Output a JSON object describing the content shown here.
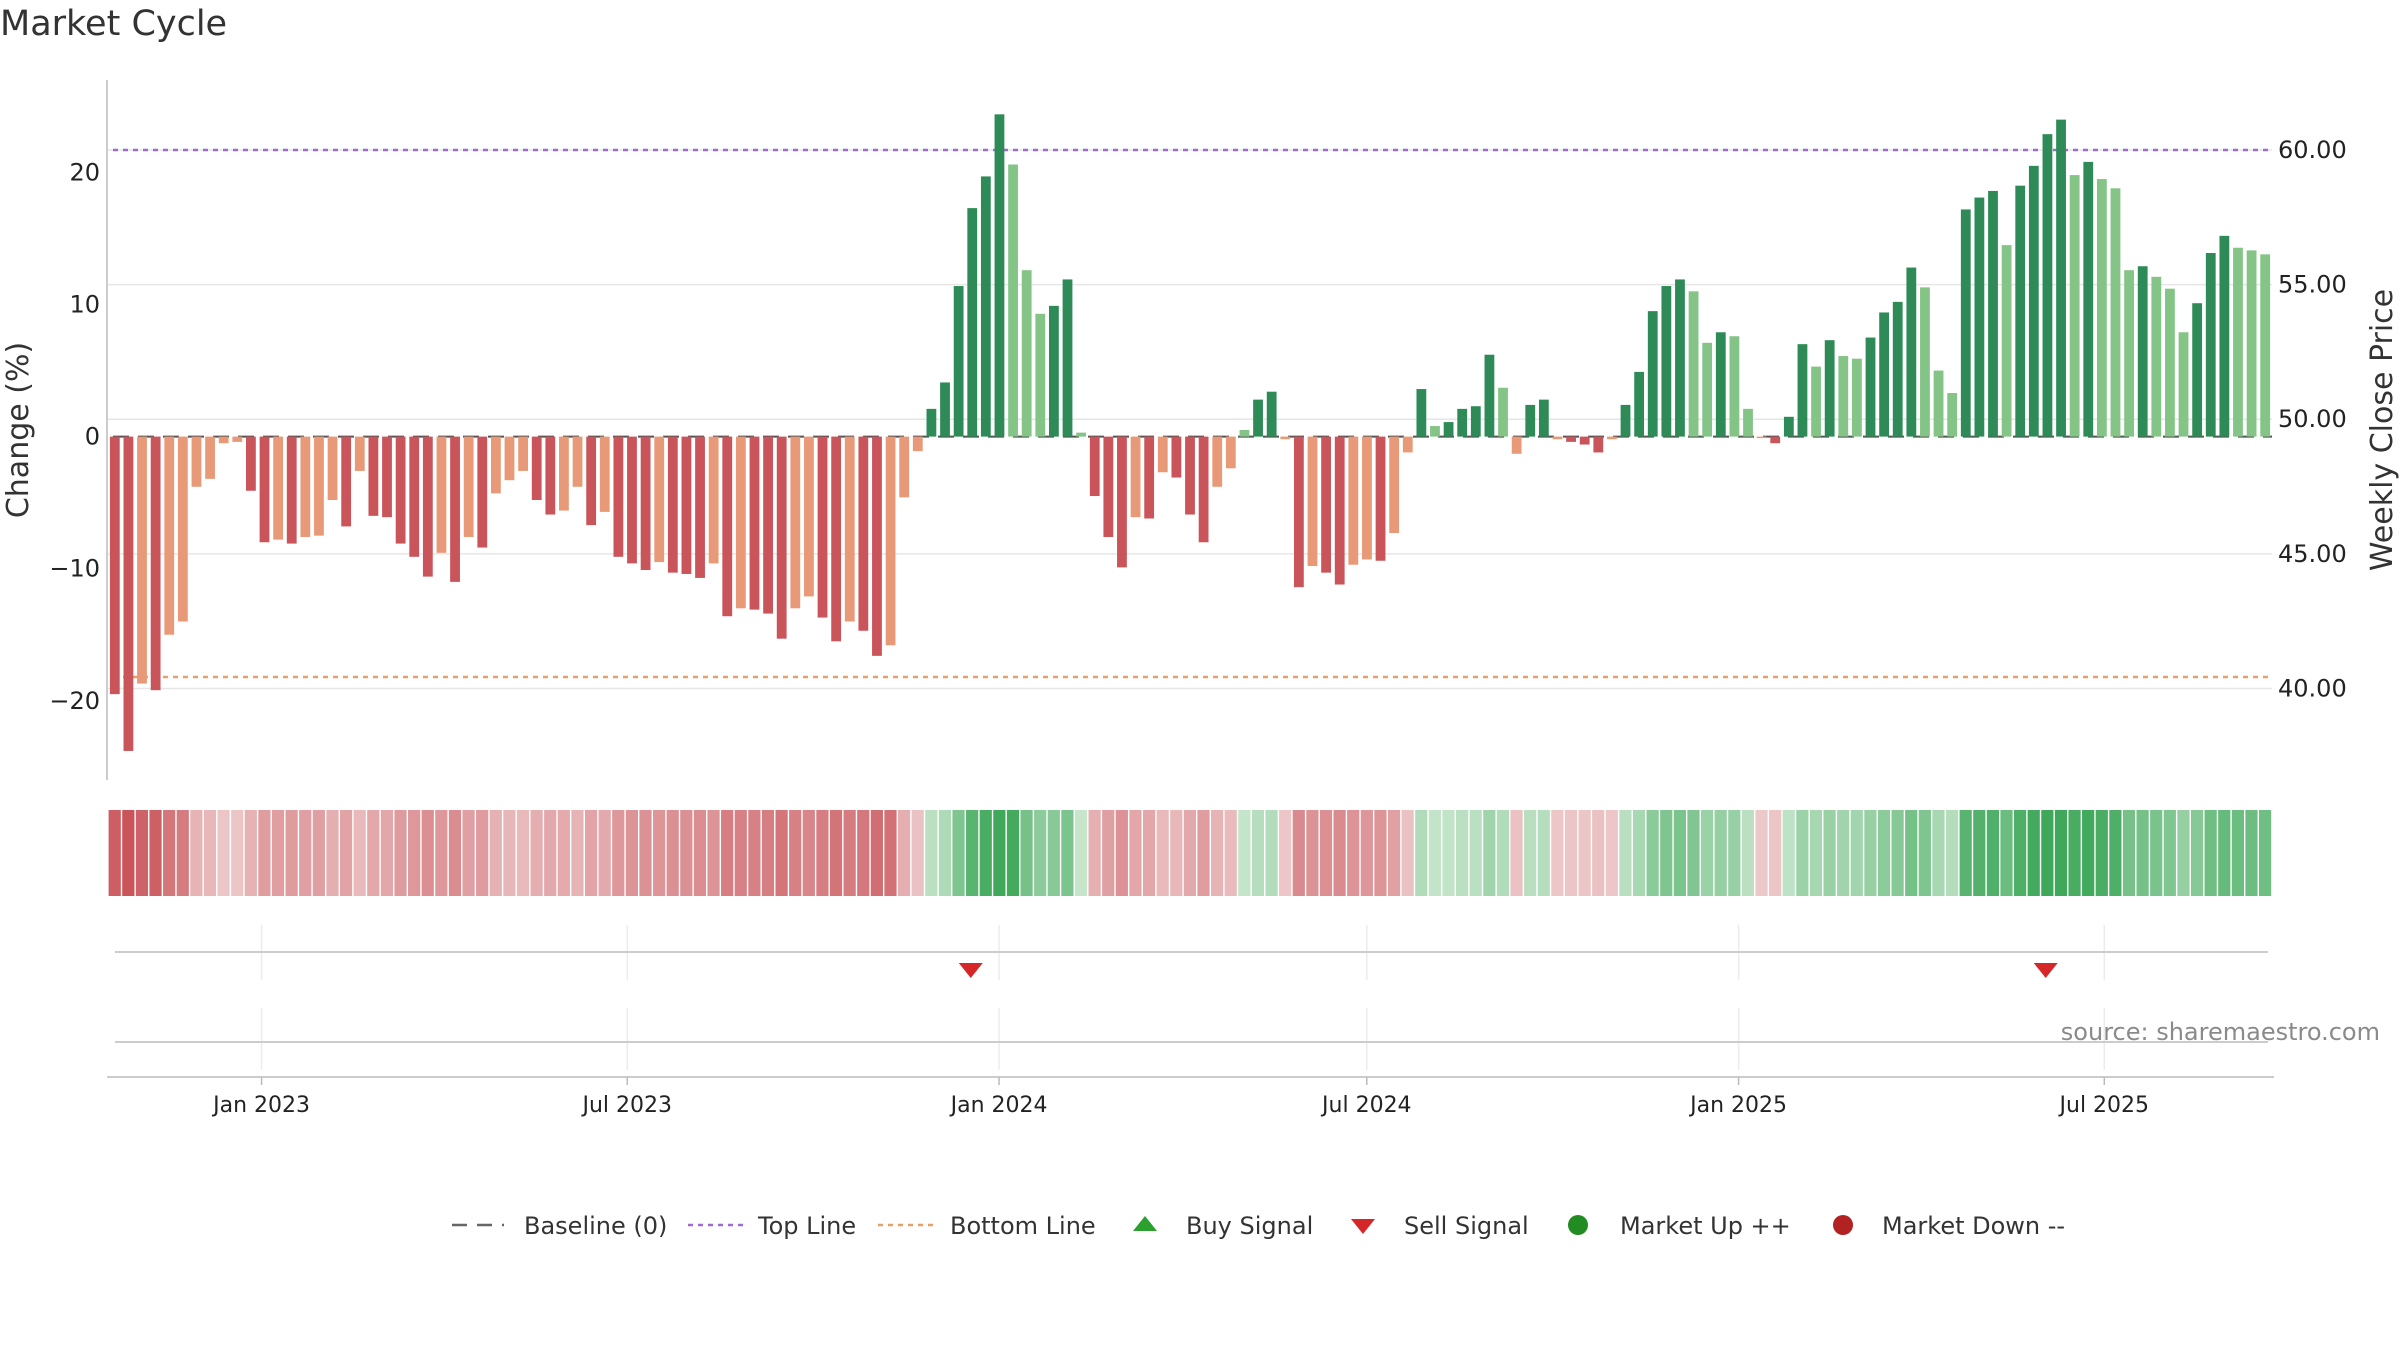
{
  "chart_data": {
    "type": "bar",
    "title": "Market Cycle",
    "ylabel": "Change (%)",
    "y2label": "Weekly Close Price",
    "ylim": [
      -26,
      27
    ],
    "y2lim": [
      36.6,
      62.6
    ],
    "yticks": [
      20,
      10,
      0,
      -10,
      -20
    ],
    "ytick_labels": [
      "20",
      "10",
      "0",
      "−10",
      "−20"
    ],
    "y2ticks": [
      60,
      55,
      50,
      45,
      40
    ],
    "y2tick_labels": [
      "60.00",
      "55.00",
      "50.00",
      "45.00",
      "40.00"
    ],
    "top_line": 21.7,
    "bottom_line": -18.2,
    "x_start": "2022-10-17",
    "x_end": "2025-09-22",
    "x_tick_dates": [
      "2023-01-01",
      "2023-07-01",
      "2024-01-01",
      "2024-07-01",
      "2025-01-01",
      "2025-07-01"
    ],
    "x_tick_labels": [
      "Jan 2023",
      "Jul 2023",
      "Jan 2024",
      "Jul 2024",
      "Jan 2025",
      "Jul 2025"
    ],
    "grid": true,
    "legend_position": "bottom",
    "colors": {
      "down_dark": "#c9545a",
      "down_light": "#e89a78",
      "up_dark": "#2e8b57",
      "up_light": "#84c487",
      "top_line": "#9e6bd6",
      "bottom_line": "#e8a06a",
      "buy": "#2ca02c",
      "sell": "#d62728",
      "market_up": "#228b22",
      "market_down": "#b22222"
    },
    "values": [
      -19.5,
      -23.8,
      -18.7,
      -19.2,
      -15,
      -14,
      -3.8,
      -3.2,
      -0.5,
      -0.4,
      -4.1,
      -8,
      -7.8,
      -8.1,
      -7.6,
      -7.5,
      -4.8,
      -6.8,
      -2.6,
      -6,
      -6.1,
      -8.1,
      -9.1,
      -10.6,
      -8.8,
      -11,
      -7.6,
      -8.4,
      -4.3,
      -3.3,
      -2.6,
      -4.8,
      -5.9,
      -5.6,
      -3.8,
      -6.7,
      -5.7,
      -9.1,
      -9.6,
      -10.1,
      -9.5,
      -10.3,
      -10.4,
      -10.7,
      -9.6,
      -13.6,
      -13,
      -13.1,
      -13.4,
      -15.3,
      -13,
      -12.1,
      -13.7,
      -15.5,
      -14,
      -14.7,
      -16.6,
      -15.8,
      -4.6,
      -1.1,
      2.1,
      4.1,
      11.4,
      17.3,
      19.7,
      24.4,
      20.6,
      12.6,
      9.3,
      9.9,
      11.9,
      0.3,
      -4.5,
      -7.6,
      -9.9,
      -6.1,
      -6.2,
      -2.7,
      -3.1,
      -5.9,
      -8,
      -3.8,
      -2.4,
      0.5,
      2.8,
      3.4,
      -0.2,
      -11.4,
      -9.8,
      -10.3,
      -11.2,
      -9.7,
      -9.3,
      -9.4,
      -7.3,
      -1.2,
      3.6,
      0.8,
      1.1,
      2.1,
      2.3,
      6.2,
      3.7,
      -1.3,
      2.4,
      2.8,
      -0.2,
      -0.4,
      -0.6,
      -1.2,
      -0.2,
      2.4,
      4.9,
      9.5,
      11.4,
      11.9,
      11,
      7.1,
      7.9,
      7.6,
      2.1,
      -0.1,
      -0.5,
      1.5,
      7,
      5.3,
      7.3,
      6.1,
      5.9,
      7.5,
      9.4,
      10.2,
      12.8,
      11.3,
      5,
      3.3,
      17.2,
      18.1,
      18.6,
      14.5,
      19,
      20.5,
      22.9,
      24,
      19.8,
      20.8,
      19.5,
      18.8,
      12.6,
      12.9,
      12.1,
      11.2,
      7.9,
      10.1,
      13.9,
      15.2,
      14.3,
      14.1,
      13.8
    ],
    "sell_signals": [
      "2023-12-18",
      "2025-06-02"
    ],
    "buy_signals": [],
    "legend": [
      {
        "key": "baseline",
        "label": "Baseline (0)"
      },
      {
        "key": "top",
        "label": "Top Line"
      },
      {
        "key": "bottom",
        "label": "Bottom Line"
      },
      {
        "key": "buy",
        "label": "Buy Signal"
      },
      {
        "key": "sell",
        "label": "Sell Signal"
      },
      {
        "key": "mup",
        "label": "Market Up ++"
      },
      {
        "key": "mdown",
        "label": "Market Down --"
      }
    ],
    "source": "source: sharemaestro.com"
  }
}
